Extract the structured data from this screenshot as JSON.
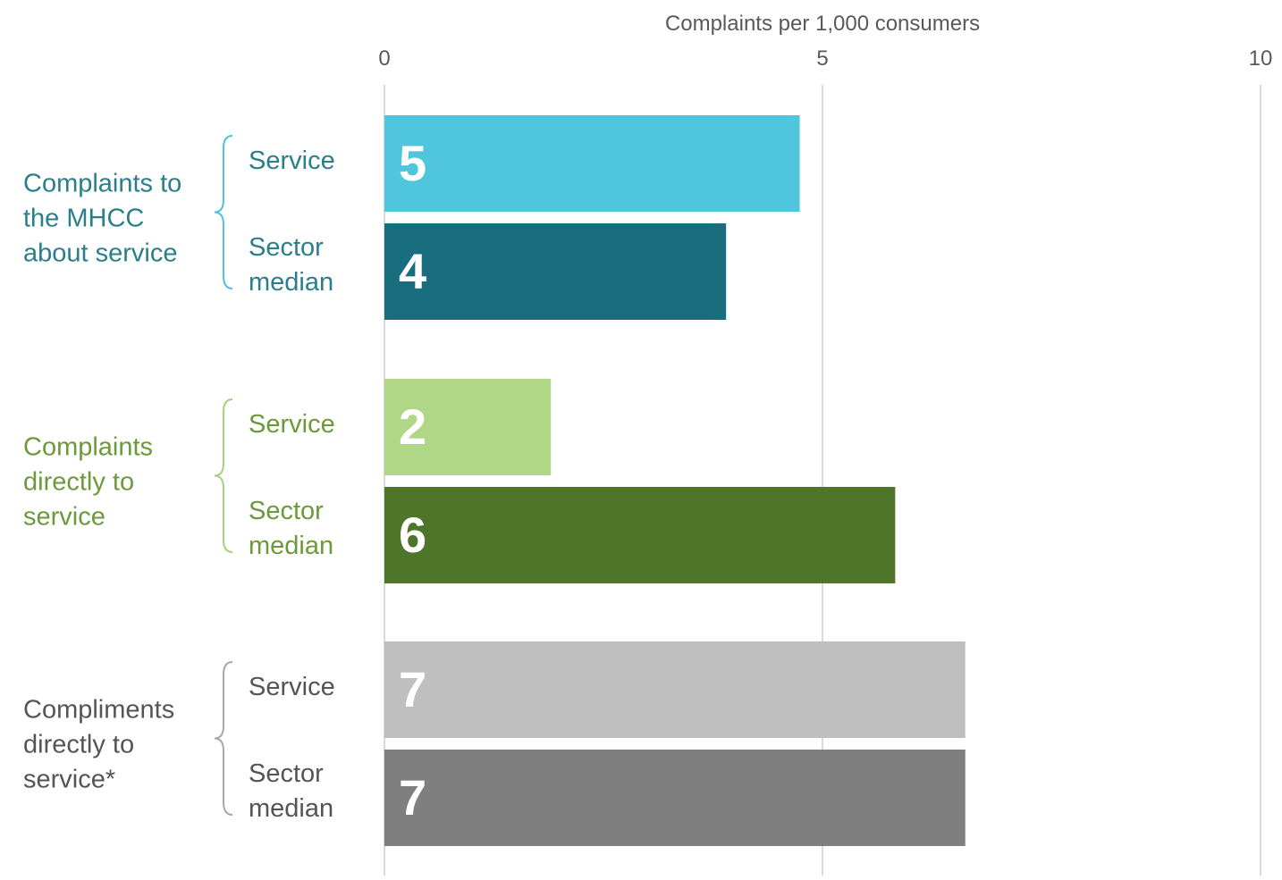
{
  "chart_data": {
    "type": "bar",
    "orientation": "horizontal",
    "title": "",
    "xlabel": "Complaints per 1,000 consumers",
    "ylabel": "",
    "xlim": [
      0,
      10
    ],
    "x_ticks": [
      0,
      5,
      10
    ],
    "grid": true,
    "groups": [
      {
        "label": "Complaints to the MHCC about service",
        "label_lines": [
          "Complaints to",
          "the MHCC",
          "about service"
        ],
        "color": "#2a7f8a",
        "brace_color": "#4fc3dd",
        "bars": [
          {
            "label": "Service",
            "label_lines": [
              "Service"
            ],
            "value": 4.74,
            "value_label": "5",
            "color": "#4fc5de"
          },
          {
            "label": "Sector median",
            "label_lines": [
              "Sector",
              "median"
            ],
            "value": 3.9,
            "value_label": "4",
            "color": "#196e7d"
          }
        ]
      },
      {
        "label": "Complaints directly to service",
        "label_lines": [
          "Complaints",
          "directly to",
          "service"
        ],
        "color": "#6a9a3a",
        "brace_color": "#a6d17f",
        "bars": [
          {
            "label": "Service",
            "label_lines": [
              "Service"
            ],
            "value": 1.9,
            "value_label": "2",
            "color": "#b0d787"
          },
          {
            "label": "Sector median",
            "label_lines": [
              "Sector",
              "median"
            ],
            "value": 5.83,
            "value_label": "6",
            "color": "#4f752a"
          }
        ]
      },
      {
        "label": "Compliments directly to service*",
        "label_lines": [
          "Compliments",
          "directly to",
          "service*"
        ],
        "color": "#555555",
        "brace_color": "#a9a9a9",
        "bars": [
          {
            "label": "Service",
            "label_lines": [
              "Service"
            ],
            "value": 6.63,
            "value_label": "7",
            "color": "#bfbfbf"
          },
          {
            "label": "Sector median",
            "label_lines": [
              "Sector",
              "median"
            ],
            "value": 6.63,
            "value_label": "7",
            "color": "#7f7f7f"
          }
        ]
      }
    ],
    "bar_category_label_color_by_group": true,
    "value_label_color": "#ffffff",
    "grid_color": "#d9d9d9",
    "axis_text_color": "#595959"
  }
}
